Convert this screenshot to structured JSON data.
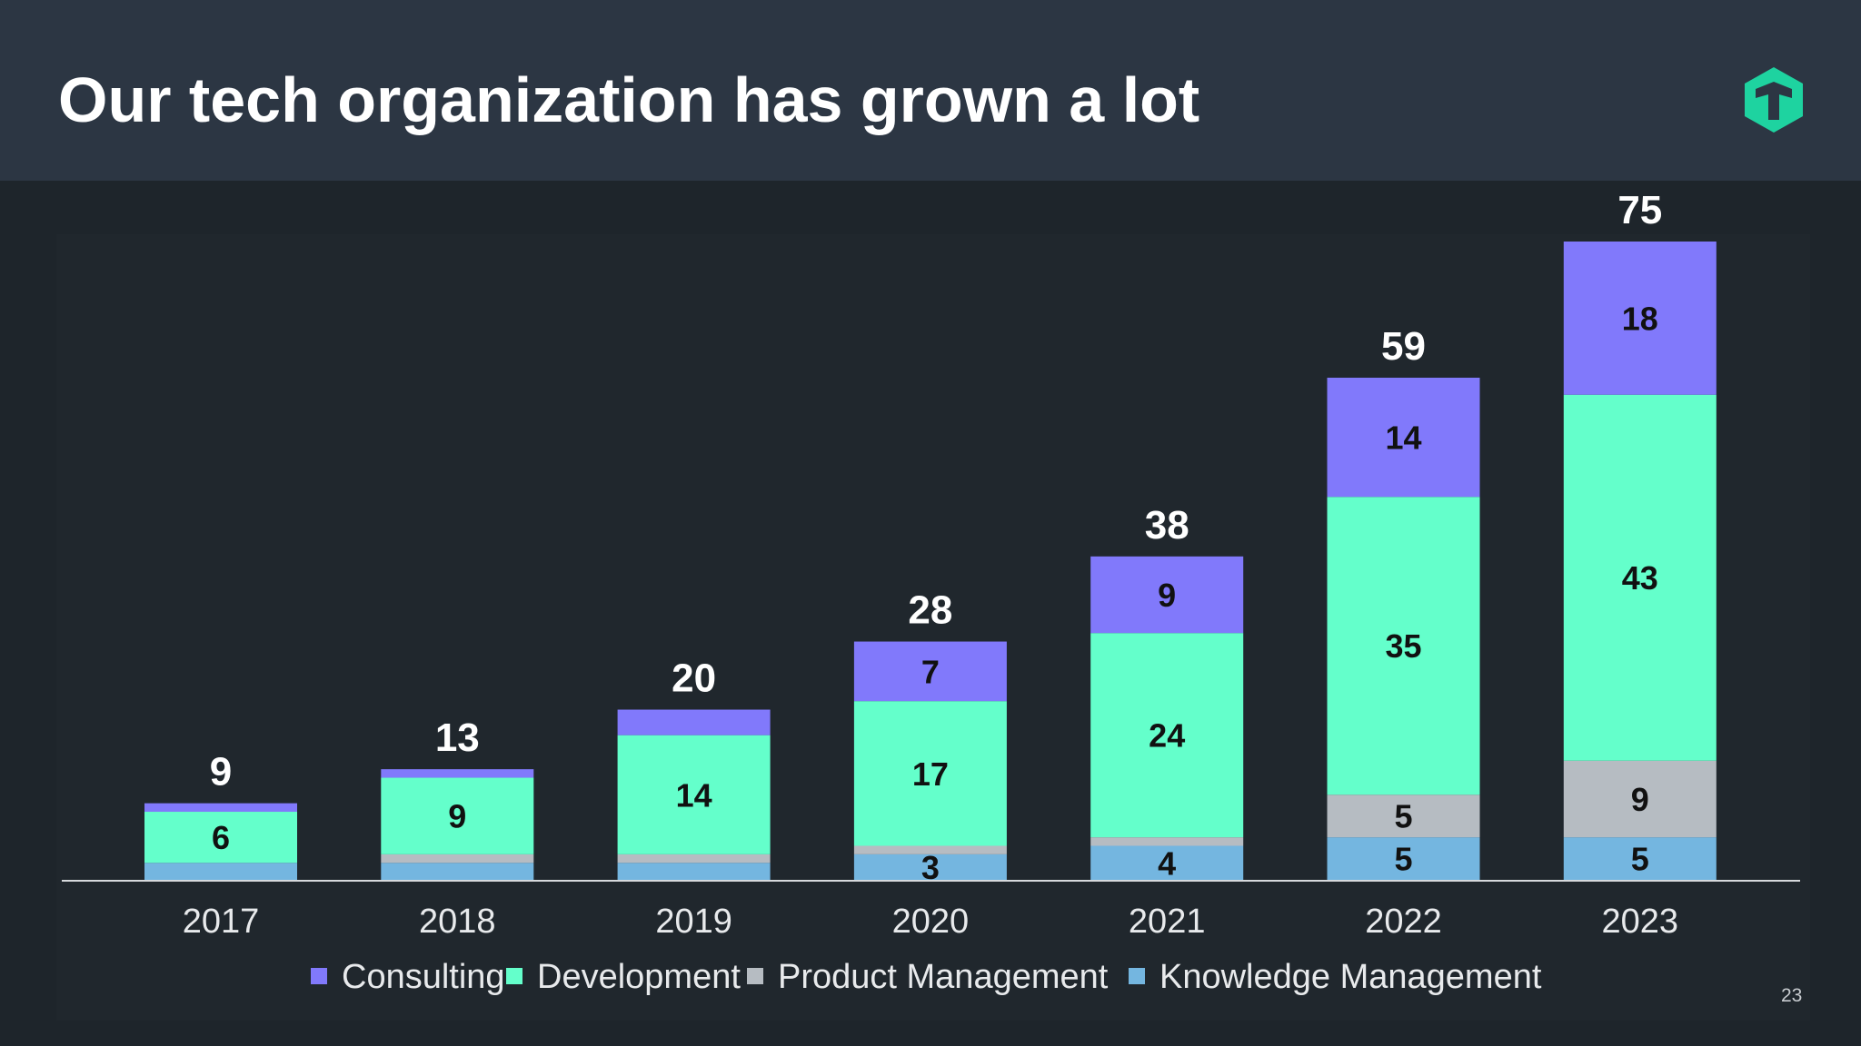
{
  "header": {
    "title": "Our tech organization has grown a lot",
    "logo": "T"
  },
  "page_number": "23",
  "chart_data": {
    "type": "stacked-bar",
    "categories": [
      "2017",
      "2018",
      "2019",
      "2020",
      "2021",
      "2022",
      "2023"
    ],
    "series": [
      {
        "name": "Knowledge Management",
        "color": "#74b6e0",
        "values": [
          2,
          2,
          2,
          3,
          4,
          5,
          5
        ],
        "labels": [
          "",
          "",
          "",
          "3",
          "4",
          "5",
          "5"
        ]
      },
      {
        "name": "Product Management",
        "color": "#b6bcc2",
        "values": [
          0,
          1,
          1,
          1,
          1,
          5,
          9
        ],
        "labels": [
          "",
          "",
          "",
          "",
          "",
          "5",
          "9"
        ]
      },
      {
        "name": "Development",
        "color": "#64ffcb",
        "values": [
          6,
          9,
          14,
          17,
          24,
          35,
          43
        ],
        "labels": [
          "6",
          "9",
          "14",
          "17",
          "24",
          "35",
          "43"
        ]
      },
      {
        "name": "Consulting",
        "color": "#8179fb",
        "values": [
          1,
          1,
          3,
          7,
          9,
          14,
          18
        ],
        "labels": [
          "",
          "",
          "",
          "7",
          "9",
          "14",
          "18"
        ]
      }
    ],
    "totals": [
      "9",
      "13",
      "20",
      "28",
      "38",
      "59",
      "75"
    ],
    "legend_order": [
      "Consulting",
      "Development",
      "Product Management",
      "Knowledge Management"
    ],
    "legend_placement": "bottom",
    "ylim": [
      0,
      75
    ],
    "grid": false
  }
}
